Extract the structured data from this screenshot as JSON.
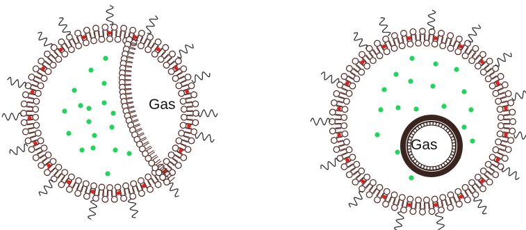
{
  "colors": {
    "background": "#ffffff",
    "lipid_outline": "#5a2f2a",
    "lipid_head_fill": "#ffffff",
    "red_dot": "#e0201c",
    "green_dot": "#21d45a",
    "peg_chain": "#333333",
    "inner_bubble": "#3a2420"
  },
  "left_diagram": {
    "gas_label": "Gas"
  },
  "right_diagram": {
    "gas_label": "Gas"
  }
}
